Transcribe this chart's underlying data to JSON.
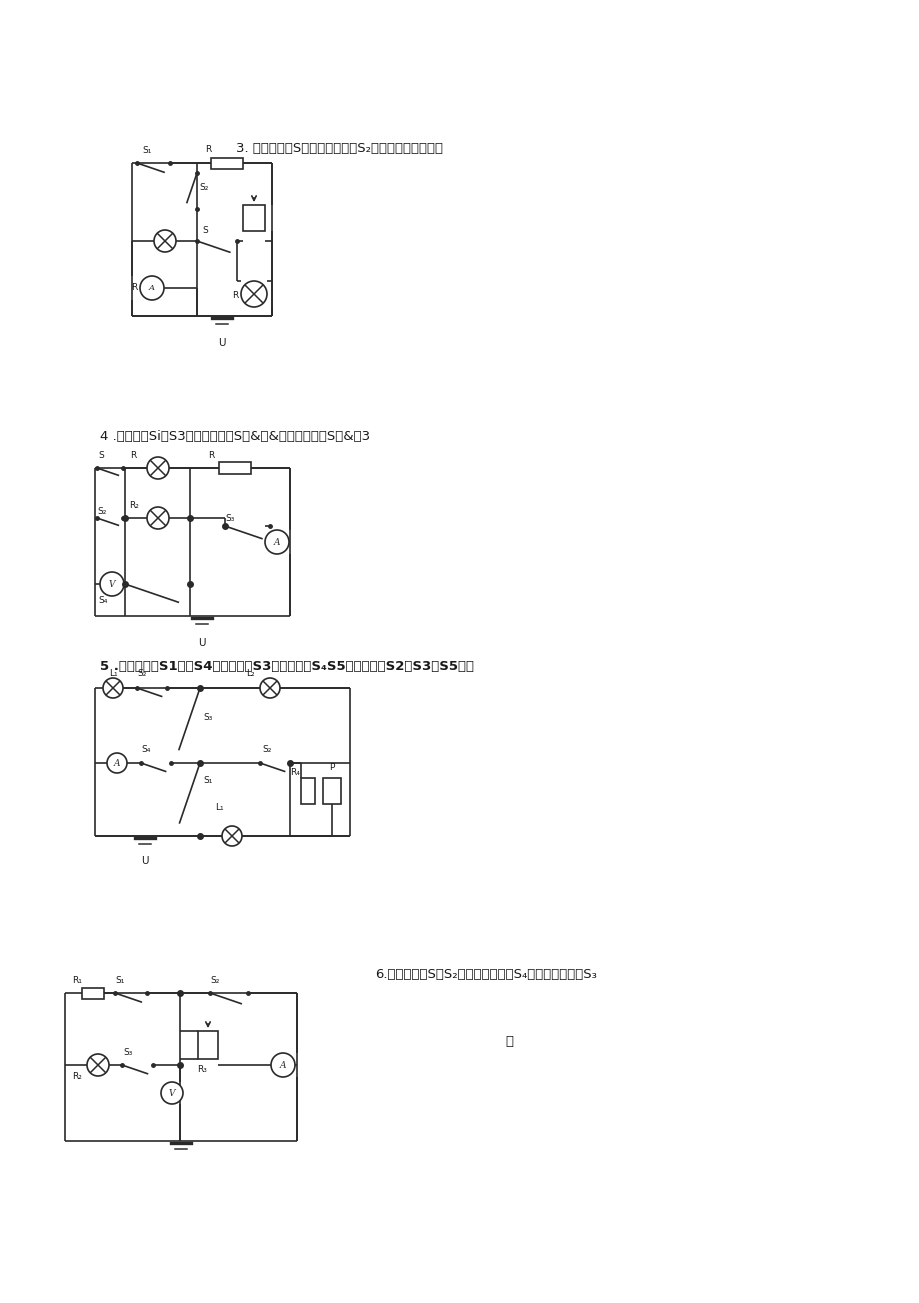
{
  "bg_color": "#ffffff",
  "text_color": "#1a1a1a",
  "title3": "3. 只闭合开关S时；只闭合开关S₂时；只闭合开关德时",
  "title4": "4 .闭合开关Si、S3时；闭合开关S、&、&时；闭合开关S、&、3",
  "title5": "5 .只闭合开关S1｢、S4时；只闭合S3时；只闭合S₄S5时；只闭合S2、S3、S5时；",
  "title6": "6.只闭合开关S和S₂时；只闭合开关S₄时；只闭合开关S₃",
  "lc": "#2a2a2a",
  "lw": 1.2,
  "fs_title": 9.5,
  "fs_label": 7.0
}
